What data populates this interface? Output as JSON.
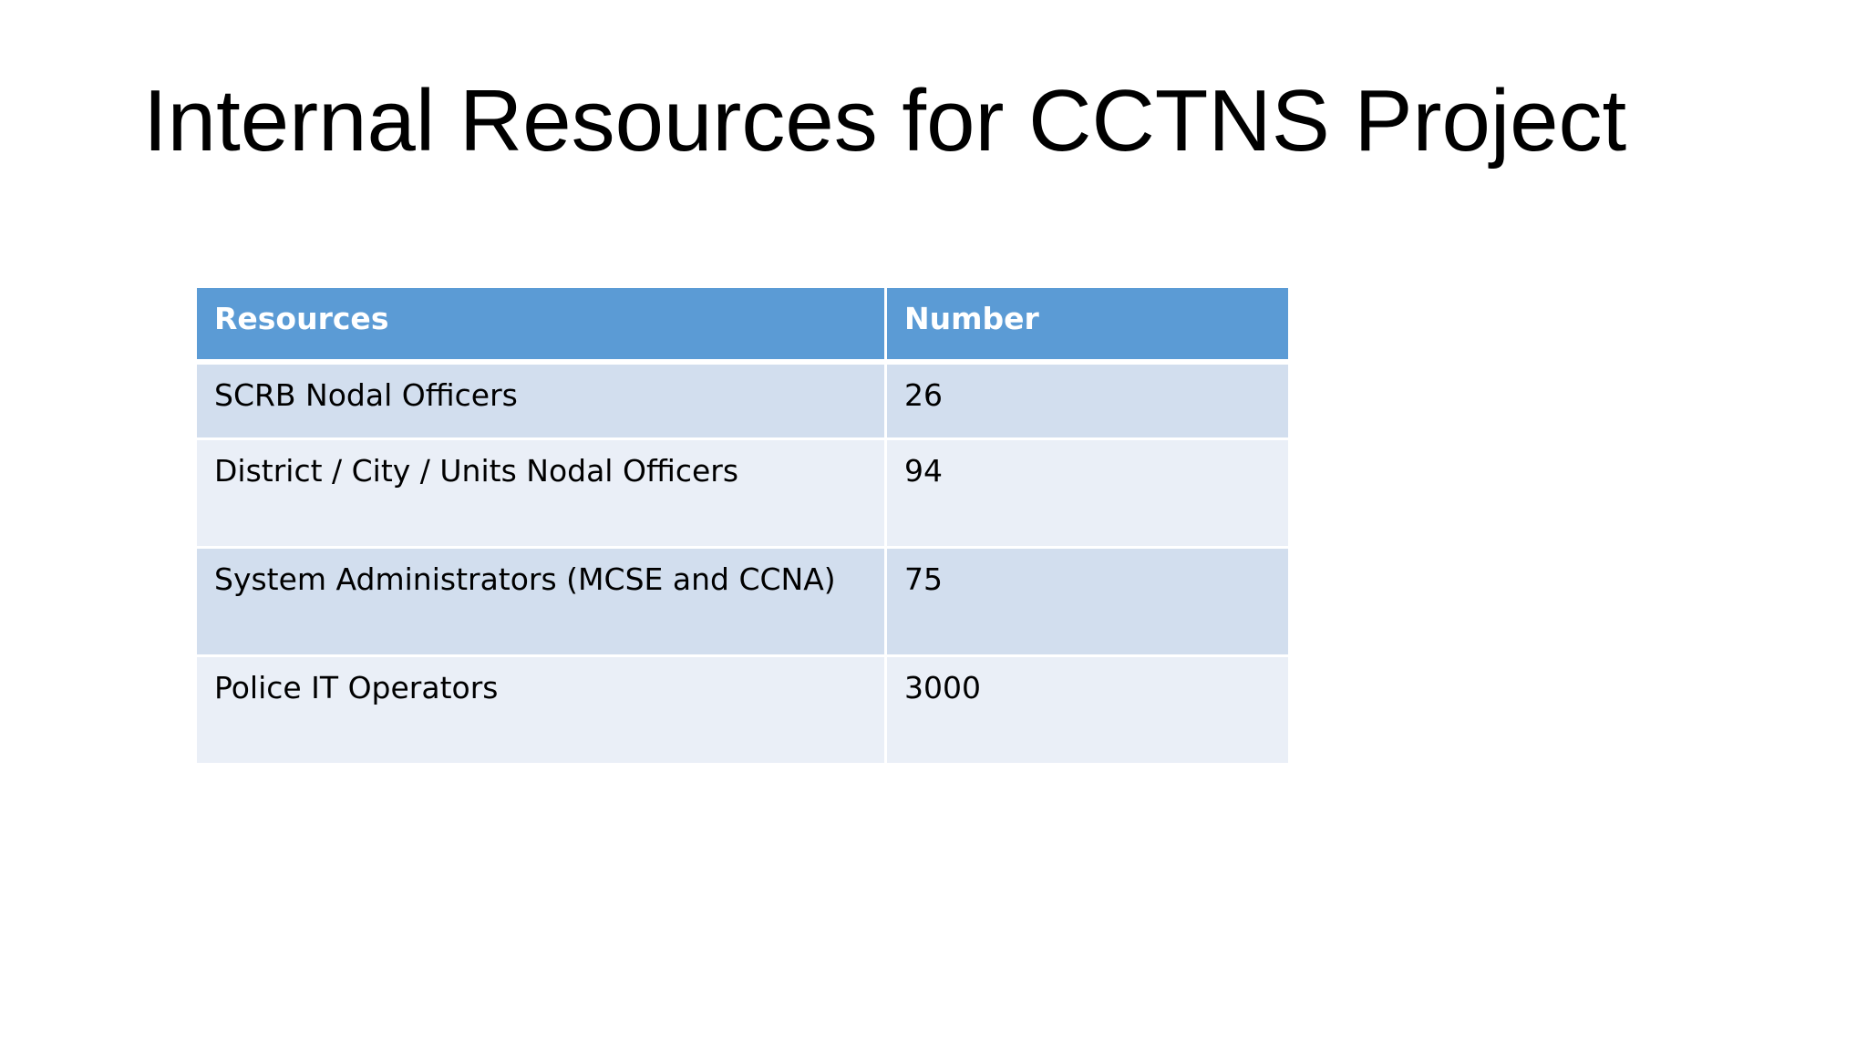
{
  "slide": {
    "title": "Internal Resources for CCTNS Project"
  },
  "table": {
    "headers": [
      "Resources",
      "Number"
    ],
    "rows": [
      [
        "SCRB Nodal Officers",
        "26"
      ],
      [
        "District / City / Units Nodal Officers",
        "94"
      ],
      [
        "System Administrators (MCSE and CCNA)",
        "75"
      ],
      [
        "Police IT Operators",
        "3000"
      ]
    ]
  },
  "colors": {
    "header_bg": "#5b9bd5",
    "row_dark": "#d2deee",
    "row_light": "#eaeff7"
  }
}
